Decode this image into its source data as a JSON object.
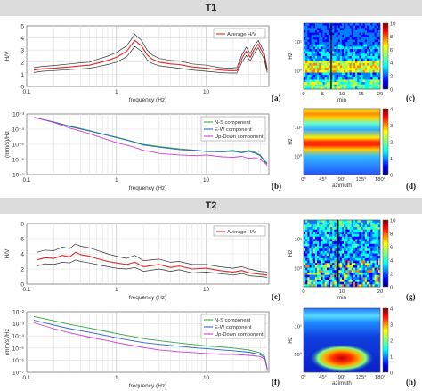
{
  "sections": [
    {
      "title": "T1"
    },
    {
      "title": "T2"
    }
  ],
  "panel_letters": [
    "(a)",
    "(b)",
    "(c)",
    "(d)",
    "(e)",
    "(f)",
    "(g)",
    "(h)"
  ],
  "colors": {
    "hv_mean": "#e02828",
    "hv_std": "#333333",
    "ns": "#2fa83a",
    "ew": "#2a62c8",
    "ud": "#d23cd2",
    "band": "#dcdcdc",
    "colormap": [
      "#00007f",
      "#0000ff",
      "#007fff",
      "#00ffff",
      "#7fff7f",
      "#ffff00",
      "#ff7f00",
      "#ff0000",
      "#7f0000"
    ]
  },
  "chart_data": [
    {
      "id": "a",
      "type": "line",
      "xscale": "log",
      "xlim": [
        0.1,
        50
      ],
      "ylim": [
        0,
        5
      ],
      "xlabel": "frequency (Hz)",
      "ylabel": "H/V",
      "yticks": [
        "0",
        "1",
        "2",
        "3",
        "4",
        "5"
      ],
      "xticks": [
        "0.1",
        "1",
        "10"
      ],
      "legend": [
        "Average H/V"
      ],
      "legend_position": "top-right",
      "grid": true,
      "x": [
        0.12,
        0.15,
        0.2,
        0.3,
        0.4,
        0.5,
        0.6,
        0.8,
        1.0,
        1.3,
        1.6,
        1.9,
        2.2,
        2.5,
        3.0,
        4.0,
        5.0,
        7.0,
        10.0,
        14.0,
        18.0,
        22.0,
        25.0,
        28.0,
        31.0,
        34.0,
        38.0,
        44.0,
        48.0
      ],
      "series": [
        {
          "name": "Average H/V",
          "role": "mean",
          "values": [
            1.35,
            1.45,
            1.5,
            1.6,
            1.7,
            1.75,
            1.9,
            2.15,
            2.4,
            2.9,
            3.8,
            3.35,
            2.6,
            2.25,
            2.0,
            1.85,
            1.8,
            1.6,
            1.5,
            1.35,
            1.3,
            1.3,
            2.3,
            2.9,
            2.4,
            3.0,
            3.5,
            2.6,
            1.3
          ]
        },
        {
          "role": "upper",
          "values": [
            1.55,
            1.65,
            1.72,
            1.85,
            1.95,
            2.0,
            2.2,
            2.5,
            2.8,
            3.35,
            4.3,
            3.8,
            3.0,
            2.6,
            2.3,
            2.15,
            2.1,
            1.85,
            1.75,
            1.55,
            1.5,
            1.55,
            2.6,
            3.25,
            2.7,
            3.3,
            3.8,
            2.9,
            1.45
          ]
        },
        {
          "role": "lower",
          "values": [
            1.15,
            1.25,
            1.3,
            1.38,
            1.45,
            1.5,
            1.6,
            1.8,
            2.0,
            2.45,
            3.3,
            2.9,
            2.2,
            1.9,
            1.7,
            1.58,
            1.5,
            1.35,
            1.25,
            1.15,
            1.1,
            1.1,
            2.0,
            2.55,
            2.1,
            2.7,
            3.2,
            2.3,
            1.15
          ]
        }
      ]
    },
    {
      "id": "b",
      "type": "line",
      "xscale": "log",
      "yscale": "log",
      "xlim": [
        0.1,
        50
      ],
      "ylim": [
        1e-07,
        0.001
      ],
      "xlabel": "frequency (Hz)",
      "ylabel": "(mm/s)/Hz",
      "yticks": [
        "10⁻⁷",
        "10⁻⁶",
        "10⁻⁵",
        "10⁻⁴",
        "10⁻³"
      ],
      "xticks": [
        "0.1",
        "1",
        "10"
      ],
      "legend": [
        "N-S component",
        "E-W component",
        "Up-Down component"
      ],
      "legend_position": "top-right",
      "grid": true,
      "x": [
        0.12,
        0.2,
        0.3,
        0.5,
        0.8,
        1.0,
        1.5,
        2.0,
        3.0,
        5.0,
        8.0,
        10.0,
        15.0,
        20.0,
        25.0,
        30.0,
        35.0,
        40.0,
        45.0,
        48.0
      ],
      "series": [
        {
          "name": "N-S component",
          "values": [
            0.0006,
            0.0003,
            0.00016,
            8e-05,
            4e-05,
            3e-05,
            1.6e-05,
            1e-05,
            7e-06,
            5e-06,
            4e-06,
            3.5e-06,
            3.5e-06,
            4e-06,
            3e-06,
            4e-06,
            3e-06,
            2e-06,
            8e-07,
            6e-07
          ]
        },
        {
          "name": "E-W component",
          "values": [
            0.0006,
            0.0003,
            0.00015,
            7.5e-05,
            3.8e-05,
            2.8e-05,
            1.5e-05,
            9e-06,
            6.5e-06,
            4.5e-06,
            3.8e-06,
            3.4e-06,
            3.2e-06,
            3.5e-06,
            2.8e-06,
            3.5e-06,
            2.6e-06,
            1.8e-06,
            7e-07,
            5e-07
          ]
        },
        {
          "name": "Up-Down component",
          "values": [
            0.0006,
            0.00028,
            0.00012,
            5e-05,
            2e-05,
            1.3e-05,
            7e-06,
            4e-06,
            2.5e-06,
            2e-06,
            1.8e-06,
            2e-06,
            1.5e-06,
            1.4e-06,
            1.6e-06,
            1.2e-06,
            1.3e-06,
            1e-06,
            6e-07,
            4e-07
          ]
        }
      ]
    },
    {
      "id": "c",
      "type": "heatmap",
      "xlabel": "min",
      "ylabel": "Hz",
      "xticks": [
        "0",
        "5",
        "10",
        "15",
        "20"
      ],
      "yticks": [
        "10⁰",
        "10¹"
      ],
      "colorbar": {
        "range": [
          0,
          10
        ],
        "ticks": [
          "0",
          "2",
          "4",
          "6",
          "8",
          "10"
        ]
      }
    },
    {
      "id": "d",
      "type": "heatmap",
      "xlabel": "azimuth",
      "ylabel": "Hz",
      "xticks": [
        "0°",
        "45°",
        "90°",
        "135°",
        "180°"
      ],
      "yticks": [
        "10⁰",
        "10¹"
      ],
      "colorbar": {
        "range": [
          0,
          4
        ],
        "ticks": [
          "0",
          "1",
          "2",
          "3",
          "4"
        ]
      }
    },
    {
      "id": "e",
      "type": "line",
      "xscale": "log",
      "xlim": [
        0.1,
        50
      ],
      "ylim": [
        0,
        8
      ],
      "xlabel": "frequency (Hz)",
      "ylabel": "H/V",
      "yticks": [
        "0",
        "2",
        "4",
        "6",
        "8"
      ],
      "xticks": [
        "0.1",
        "1",
        "10"
      ],
      "legend": [
        "Average H/V"
      ],
      "legend_position": "top-right",
      "grid": true,
      "x": [
        0.13,
        0.16,
        0.2,
        0.25,
        0.3,
        0.35,
        0.4,
        0.5,
        0.6,
        0.8,
        1.0,
        1.3,
        1.6,
        2.0,
        3.0,
        4.0,
        5.0,
        7.0,
        10.0,
        14.0,
        20.0,
        25.0,
        30.0,
        40.0,
        48.0
      ],
      "series": [
        {
          "name": "Average H/V",
          "role": "mean",
          "values": [
            3.2,
            3.5,
            3.4,
            3.8,
            3.6,
            4.2,
            3.9,
            3.7,
            3.4,
            3.0,
            2.8,
            2.6,
            2.9,
            2.3,
            2.6,
            2.2,
            2.4,
            2.0,
            2.1,
            1.8,
            1.6,
            1.8,
            1.5,
            1.3,
            1.2
          ]
        },
        {
          "role": "upper",
          "values": [
            4.2,
            4.5,
            4.4,
            4.9,
            4.7,
            5.3,
            5.0,
            4.8,
            4.5,
            4.0,
            3.7,
            3.4,
            3.8,
            3.1,
            3.3,
            2.9,
            3.0,
            2.6,
            2.6,
            2.3,
            2.1,
            2.3,
            2.0,
            1.7,
            1.6
          ]
        },
        {
          "role": "lower",
          "values": [
            2.4,
            2.7,
            2.6,
            2.9,
            2.8,
            3.2,
            3.0,
            2.8,
            2.6,
            2.3,
            2.1,
            2.0,
            2.2,
            1.7,
            2.0,
            1.7,
            1.9,
            1.5,
            1.6,
            1.4,
            1.2,
            1.4,
            1.1,
            1.0,
            0.9
          ]
        }
      ]
    },
    {
      "id": "f",
      "type": "line",
      "xscale": "log",
      "yscale": "log",
      "xlim": [
        0.1,
        50
      ],
      "ylim": [
        1e-07,
        0.01
      ],
      "xlabel": "frequency (Hz)",
      "ylabel": "(mm/s)/Hz",
      "yticks": [
        "10⁻⁷",
        "10⁻⁶",
        "10⁻⁵",
        "10⁻⁴",
        "10⁻³",
        "10⁻²"
      ],
      "xticks": [
        "0.1",
        "1",
        "10"
      ],
      "legend": [
        "N-S component",
        "E-W component",
        "Up-Down component"
      ],
      "legend_position": "top-right",
      "grid": true,
      "x": [
        0.12,
        0.2,
        0.3,
        0.5,
        0.8,
        1.0,
        1.5,
        2.0,
        3.0,
        5.0,
        8.0,
        10.0,
        15.0,
        20.0,
        30.0,
        40.0,
        45.0,
        48.0
      ],
      "series": [
        {
          "name": "N-S component",
          "values": [
            0.004,
            0.0018,
            0.0009,
            0.00045,
            0.00022,
            0.00016,
            9e-05,
            6e-05,
            4e-05,
            2.6e-05,
            1.8e-05,
            1.5e-05,
            1.2e-05,
            1e-05,
            7e-06,
            4e-06,
            2e-06,
            2e-07
          ]
        },
        {
          "name": "E-W component",
          "values": [
            0.002,
            0.0008,
            0.0004,
            0.0002,
            0.0001,
            7e-05,
            4e-05,
            2.8e-05,
            2e-05,
            1.4e-05,
            1e-05,
            9e-06,
            7e-06,
            6e-06,
            4.5e-06,
            3e-06,
            1.5e-06,
            1.8e-07
          ]
        },
        {
          "name": "Up-Down component",
          "values": [
            0.0012,
            0.0004,
            0.00018,
            8e-05,
            4e-05,
            2.8e-05,
            1.6e-05,
            1.1e-05,
            7e-06,
            5e-06,
            4e-06,
            3.5e-06,
            3e-06,
            3e-06,
            2.5e-06,
            2e-06,
            1.2e-06,
            1.5e-07
          ]
        }
      ]
    },
    {
      "id": "g",
      "type": "heatmap",
      "xlabel": "min",
      "ylabel": "Hz",
      "xticks": [
        "0",
        "10",
        "20"
      ],
      "yticks": [
        "10⁰",
        "10¹"
      ],
      "colorbar": {
        "range": [
          0,
          10
        ],
        "ticks": [
          "0",
          "2",
          "4",
          "6",
          "8",
          "10"
        ]
      }
    },
    {
      "id": "h",
      "type": "heatmap",
      "xlabel": "azimuth",
      "ylabel": "Hz",
      "xticks": [
        "0°",
        "45°",
        "90°",
        "135°",
        "180°"
      ],
      "yticks": [
        "10⁰",
        "10¹"
      ],
      "colorbar": {
        "range": [
          0,
          4
        ],
        "ticks": [
          "0",
          "1",
          "2",
          "3",
          "4"
        ]
      }
    }
  ]
}
